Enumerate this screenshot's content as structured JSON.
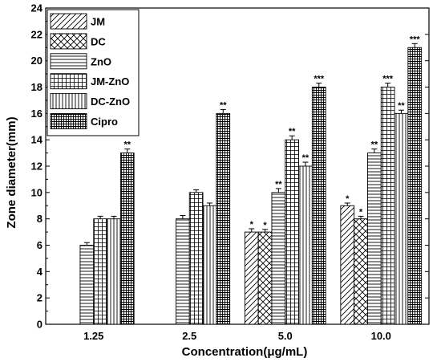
{
  "chart_data": {
    "type": "bar",
    "categories": [
      "1.25",
      "2.5",
      "5.0",
      "10.0"
    ],
    "xlabel": "Concentration(μg/mL)",
    "ylabel": "Zone diameter(mm)",
    "ylim": [
      0,
      24
    ],
    "yticks": [
      "0",
      "2",
      "4",
      "6",
      "8",
      "10",
      "12",
      "14",
      "16",
      "18",
      "20",
      "22",
      "24"
    ],
    "legend_position": "top-left",
    "series": [
      {
        "name": "JM",
        "pattern": "diag-right",
        "values": [
          null,
          null,
          7,
          9
        ],
        "errors": [
          null,
          null,
          0.25,
          0.2
        ],
        "sig": [
          null,
          null,
          "*",
          "*"
        ]
      },
      {
        "name": "DC",
        "pattern": "crosshatch",
        "values": [
          null,
          null,
          7,
          8
        ],
        "errors": [
          null,
          null,
          0.2,
          0.2
        ],
        "sig": [
          null,
          null,
          "*",
          "*"
        ]
      },
      {
        "name": "ZnO",
        "pattern": "horizontal",
        "values": [
          6,
          8,
          10,
          13
        ],
        "errors": [
          0.2,
          0.25,
          0.3,
          0.3
        ],
        "sig": [
          null,
          null,
          "**",
          "**"
        ]
      },
      {
        "name": "JM-ZnO",
        "pattern": "grid",
        "values": [
          8,
          10,
          14,
          18
        ],
        "errors": [
          0.2,
          0.2,
          0.3,
          0.3
        ],
        "sig": [
          null,
          null,
          "**",
          "***"
        ]
      },
      {
        "name": "DC-ZnO",
        "pattern": "vertical",
        "values": [
          8,
          9,
          12,
          16
        ],
        "errors": [
          0.2,
          0.2,
          0.3,
          0.25
        ],
        "sig": [
          null,
          null,
          "**",
          "**"
        ]
      },
      {
        "name": "Cipro",
        "pattern": "dense-grid",
        "values": [
          13,
          16,
          18,
          21
        ],
        "errors": [
          0.3,
          0.3,
          0.3,
          0.3
        ],
        "sig": [
          "**",
          "**",
          "***",
          "***"
        ]
      }
    ]
  }
}
